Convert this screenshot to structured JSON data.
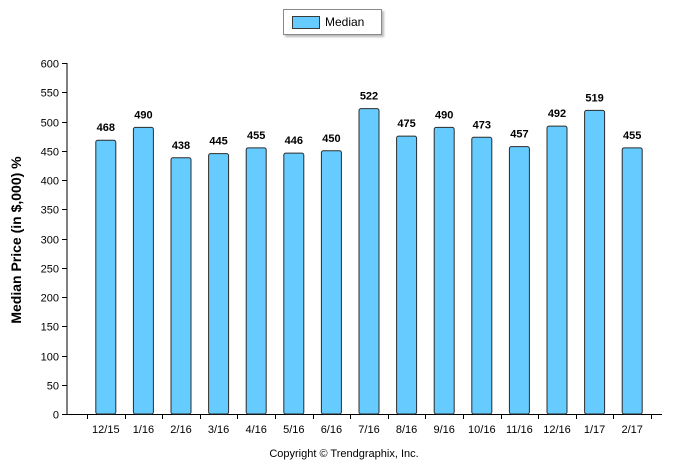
{
  "chart_data": {
    "type": "bar",
    "categories": [
      "12/15",
      "1/16",
      "2/16",
      "3/16",
      "4/16",
      "5/16",
      "6/16",
      "7/16",
      "8/16",
      "9/16",
      "10/16",
      "11/16",
      "12/16",
      "1/17",
      "2/17"
    ],
    "series": [
      {
        "name": "Median",
        "values": [
          468,
          490,
          438,
          445,
          455,
          446,
          450,
          522,
          475,
          490,
          473,
          457,
          492,
          519,
          455
        ]
      }
    ],
    "ylabel": "Median Price (in $,000) %",
    "xlabel": "",
    "ylim": [
      0,
      600
    ],
    "yticks": [
      0,
      50,
      100,
      150,
      200,
      250,
      300,
      350,
      400,
      450,
      500,
      550,
      600
    ],
    "grid": false,
    "legend": "top-center",
    "colors": {
      "bar": "#66ccff",
      "bar_stroke": "#2b2b2b"
    }
  },
  "footer": {
    "copyright": "Copyright © Trendgraphix, Inc."
  }
}
